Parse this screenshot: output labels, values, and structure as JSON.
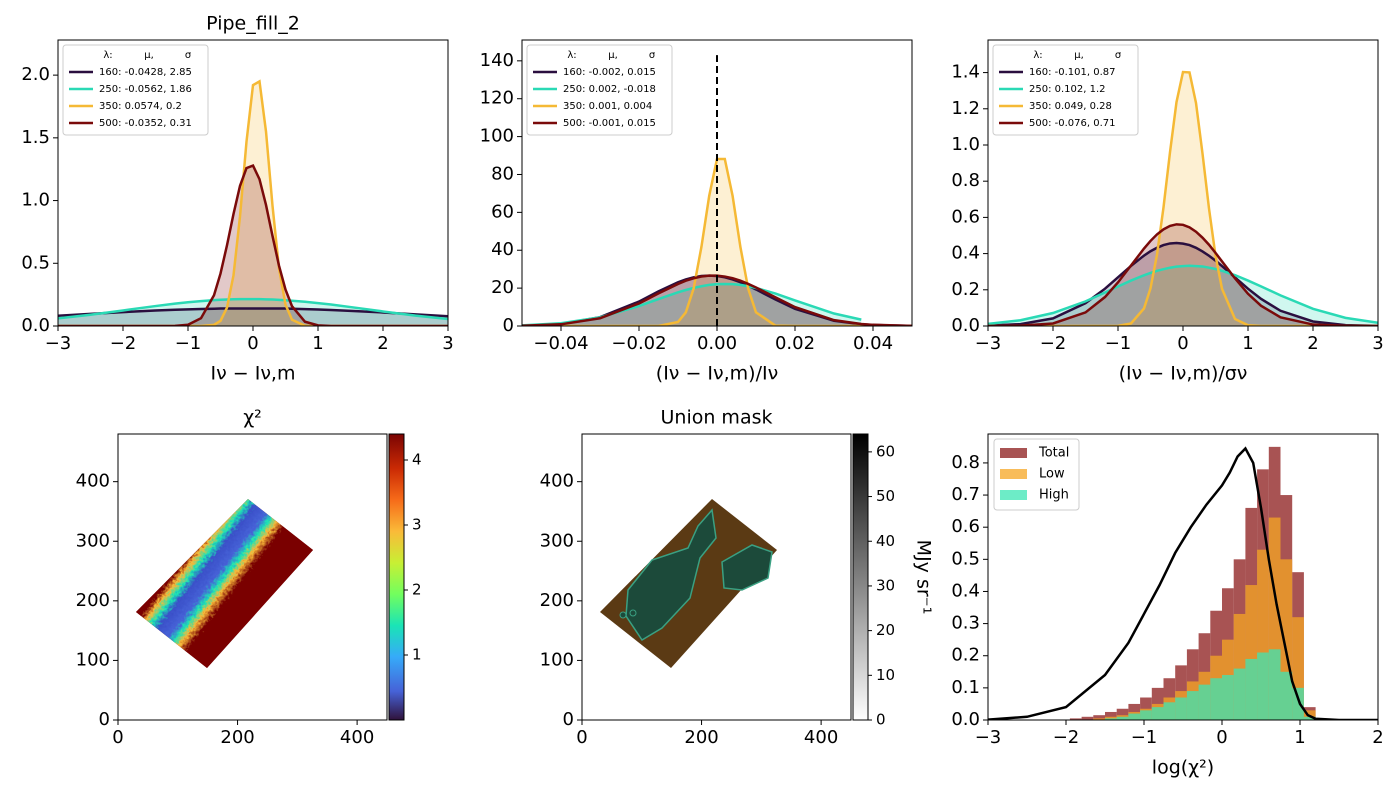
{
  "chart_data": [
    {
      "type": "line",
      "title": "Pipe_fill_2",
      "x_label": "Iν − Iν,m",
      "legend_title": [
        "λ:",
        "μ,",
        "σ"
      ],
      "legend": "upper left",
      "xlim": [
        -3,
        3
      ],
      "ylim": [
        0,
        2.28
      ],
      "xticks": [
        {
          "value": -3,
          "label": "−3"
        },
        {
          "value": -2,
          "label": "−2"
        },
        {
          "value": -1,
          "label": "−1"
        },
        0,
        1,
        2,
        3
      ],
      "yticks": [
        {
          "value": 0,
          "label": "0.0"
        },
        {
          "value": 0.5,
          "label": "0.5"
        },
        {
          "value": 1,
          "label": "1.0"
        },
        {
          "value": 1.5,
          "label": "1.5"
        },
        {
          "value": 2,
          "label": "2.0"
        }
      ],
      "x": [
        -3,
        -2.5,
        -2,
        -1.5,
        -1.2,
        -1,
        -0.8,
        -0.6,
        -0.5,
        -0.4,
        -0.3,
        -0.2,
        -0.1,
        0,
        0.1,
        0.2,
        0.3,
        0.4,
        0.5,
        0.6,
        0.8,
        1,
        1.2,
        1.5,
        2,
        2.5,
        3
      ],
      "series": [
        {
          "name": "160: -0.0428,  2.85",
          "color": "#2a0f3f",
          "values": [
            0.082,
            0.097,
            0.111,
            0.124,
            0.13,
            0.133,
            0.136,
            0.138,
            0.139,
            0.14,
            0.14,
            0.14,
            0.14,
            0.14,
            0.14,
            0.14,
            0.14,
            0.14,
            0.139,
            0.138,
            0.135,
            0.132,
            0.128,
            0.121,
            0.108,
            0.093,
            0.078
          ]
        },
        {
          "name": "250: -0.0562,  1.86",
          "color": "#2ad9b5",
          "values": [
            0.061,
            0.09,
            0.124,
            0.159,
            0.178,
            0.189,
            0.198,
            0.206,
            0.209,
            0.211,
            0.213,
            0.214,
            0.214,
            0.2145,
            0.214,
            0.2125,
            0.211,
            0.208,
            0.205,
            0.201,
            0.193,
            0.182,
            0.171,
            0.151,
            0.116,
            0.083,
            0.056
          ]
        },
        {
          "name": "350: 0.0574,  0.2",
          "color": "#f5b935",
          "values": [
            0,
            0,
            0,
            0,
            0,
            0,
            0,
            0.009,
            0.041,
            0.147,
            0.404,
            0.873,
            1.47,
            1.92,
            1.95,
            1.55,
            0.959,
            0.46,
            0.17,
            0.05,
            0.002,
            0,
            0,
            0,
            0,
            0,
            0
          ]
        },
        {
          "name": "500: -0.0352,  0.31",
          "color": "#7a0a0a",
          "values": [
            0,
            0,
            0,
            0,
            0.001,
            0.01,
            0.062,
            0.245,
            0.418,
            0.644,
            0.893,
            1.117,
            1.259,
            1.279,
            1.17,
            0.965,
            0.718,
            0.481,
            0.29,
            0.158,
            0.034,
            0.005,
            0,
            0,
            0,
            0,
            0
          ]
        }
      ]
    },
    {
      "type": "line",
      "x_label": "(Iν − Iν,m)/Iν",
      "legend_title": [
        "λ:",
        "μ,",
        "σ"
      ],
      "legend": "upper left",
      "xlim": [
        -0.05,
        0.05
      ],
      "ylim": [
        0,
        151
      ],
      "xticks": [
        {
          "value": -0.04,
          "label": "−0.04"
        },
        {
          "value": -0.02,
          "label": "−0.02"
        },
        {
          "value": 0,
          "label": "0.00"
        },
        {
          "value": 0.02,
          "label": "0.02"
        },
        {
          "value": 0.04,
          "label": "0.04"
        }
      ],
      "yticks": [
        0,
        20,
        40,
        60,
        80,
        100,
        120,
        140
      ],
      "reference_line": {
        "x": 0,
        "y": [
          0,
          143
        ]
      },
      "x": [
        -0.05,
        -0.04,
        -0.03,
        -0.02,
        -0.015,
        -0.01,
        -0.008,
        -0.006,
        -0.004,
        -0.002,
        0,
        0.002,
        0.004,
        0.006,
        0.008,
        0.01,
        0.015,
        0.02,
        0.03,
        0.037,
        0.04,
        0.05
      ],
      "series": [
        {
          "name": "160: -0.002,  0.015",
          "color": "#2a0f3f",
          "values": [
            0.16,
            1.07,
            4.66,
            12.9,
            18.3,
            23.1,
            24.6,
            25.7,
            26.4,
            26.6,
            26.4,
            25.7,
            24.6,
            23.1,
            21.3,
            19.3,
            14.0,
            9.07,
            2.73,
            0.9,
            0.53,
            0.07
          ]
        },
        {
          "name": "250: 0.002,  -0.018",
          "color": "#2ad9b5",
          "values": [
            0.34,
            1.46,
            4.57,
            10.5,
            14.2,
            17.8,
            19.0,
            20.1,
            21.0,
            21.7,
            22.1,
            22.2,
            22.1,
            21.7,
            21.0,
            20.1,
            17.1,
            13.5,
            6.6,
            3.35,
            null,
            null
          ]
        },
        {
          "name": "350: 0.001,  0.004",
          "color": "#f5b935",
          "values": [
            0,
            0,
            0,
            0,
            0.03,
            2.1,
            7.2,
            19.7,
            41.7,
            68.7,
            88.2,
            88.2,
            68.7,
            41.7,
            19.7,
            7.2,
            0.2,
            0,
            0,
            0,
            0,
            0
          ]
        },
        {
          "name": "500: -0.001,  0.015",
          "color": "#7a0a0a",
          "values": [
            0.13,
            0.9,
            4.1,
            11.9,
            17.2,
            22.2,
            23.9,
            25.2,
            26.1,
            26.6,
            26.6,
            26.1,
            25.2,
            23.9,
            22.2,
            20.3,
            15.1,
            10.0,
            3.1,
            1.07,
            0.63,
            0.08
          ]
        }
      ]
    },
    {
      "type": "line",
      "x_label": "(Iν − Iν,m)/σν",
      "legend_title": [
        "λ:",
        "μ,",
        "σ"
      ],
      "legend": "upper left",
      "xlim": [
        -3,
        3
      ],
      "ylim": [
        0,
        1.58
      ],
      "xticks": [
        {
          "value": -3,
          "label": "−3"
        },
        {
          "value": -2,
          "label": "−2"
        },
        {
          "value": -1,
          "label": "−1"
        },
        0,
        1,
        2,
        3
      ],
      "yticks": [
        {
          "value": 0,
          "label": "0.0"
        },
        {
          "value": 0.2,
          "label": "0.2"
        },
        {
          "value": 0.4,
          "label": "0.4"
        },
        {
          "value": 0.6,
          "label": "0.6"
        },
        {
          "value": 0.8,
          "label": "0.8"
        },
        {
          "value": 1,
          "label": "1.0"
        },
        {
          "value": 1.2,
          "label": "1.2"
        },
        {
          "value": 1.4,
          "label": "1.4"
        }
      ],
      "x": [
        -3,
        -2.5,
        -2,
        -1.5,
        -1.2,
        -1,
        -0.8,
        -0.6,
        -0.5,
        -0.4,
        -0.3,
        -0.2,
        -0.1,
        0,
        0.1,
        0.2,
        0.3,
        0.4,
        0.5,
        0.6,
        0.8,
        1,
        1.2,
        1.5,
        2,
        2.5,
        3
      ],
      "series": [
        {
          "name": "160: -0.101,  0.87",
          "color": "#2a0f3f",
          "values": [
            0.0018,
            0.0103,
            0.042,
            0.126,
            0.206,
            0.269,
            0.332,
            0.389,
            0.413,
            0.432,
            0.447,
            0.456,
            0.4586,
            0.455,
            0.447,
            0.432,
            0.412,
            0.388,
            0.361,
            0.331,
            0.268,
            0.206,
            0.15,
            0.084,
            0.025,
            0.005,
            0.001
          ]
        },
        {
          "name": "250: 0.102,  1.2",
          "color": "#2ad9b5",
          "values": [
            0.0118,
            0.0317,
            0.0717,
            0.136,
            0.185,
            0.218,
            0.251,
            0.28,
            0.293,
            0.305,
            0.314,
            0.322,
            0.328,
            0.331,
            0.3325,
            0.331,
            0.329,
            0.322,
            0.315,
            0.305,
            0.281,
            0.251,
            0.219,
            0.169,
            0.095,
            0.045,
            0.018
          ]
        },
        {
          "name": "350: 0.049,  0.28",
          "color": "#f5b935",
          "values": [
            0,
            0,
            0,
            0,
            0,
            0.001,
            0.014,
            0.097,
            0.208,
            0.394,
            0.655,
            0.96,
            1.237,
            1.403,
            1.401,
            1.232,
            0.953,
            0.649,
            0.389,
            0.206,
            0.039,
            0.004,
            0,
            0,
            0,
            0,
            0
          ]
        },
        {
          "name": "500: -0.076,  0.71",
          "color": "#7a0a0a",
          "values": [
            0,
            0.002,
            0.014,
            0.075,
            0.16,
            0.241,
            0.334,
            0.428,
            0.47,
            0.506,
            0.534,
            0.553,
            0.5616,
            0.559,
            0.545,
            0.521,
            0.488,
            0.449,
            0.404,
            0.357,
            0.263,
            0.178,
            0.112,
            0.048,
            0.008,
            0.001,
            0
          ]
        }
      ]
    },
    {
      "type": "image",
      "title": "χ²",
      "xlim": [
        0,
        450
      ],
      "ylim": [
        0,
        480
      ],
      "xticks": [
        0,
        200,
        400
      ],
      "yticks": [
        0,
        100,
        200,
        300,
        400
      ],
      "colorbar": {
        "colormap": "turbo",
        "lim": [
          0,
          4.4
        ],
        "ticks": [
          1,
          2,
          3,
          4
        ]
      }
    },
    {
      "type": "image",
      "title": "Union mask",
      "xlim": [
        0,
        450
      ],
      "ylim": [
        0,
        480
      ],
      "xticks": [
        0,
        200,
        400
      ],
      "yticks": [
        0,
        100,
        200,
        300,
        400
      ],
      "colorbar": {
        "colormap": "gray_r",
        "lim": [
          0,
          64
        ],
        "ticks": [
          0,
          10,
          20,
          30,
          40,
          50,
          60
        ],
        "label": "MJy sr⁻¹"
      }
    },
    {
      "type": "histogram",
      "x_label": "log(χ²)",
      "legend": "upper left",
      "xlim": [
        -3,
        2
      ],
      "ylim": [
        0,
        0.89
      ],
      "xticks": [
        {
          "value": -3,
          "label": "−3"
        },
        {
          "value": -2,
          "label": "−2"
        },
        {
          "value": -1,
          "label": "−1"
        },
        0,
        1,
        2
      ],
      "yticks": [
        {
          "value": 0,
          "label": "0.0"
        },
        0.1,
        0.2,
        0.3,
        0.4,
        0.5,
        0.6,
        0.7,
        0.8
      ],
      "bins": [
        -3,
        -2.85,
        -2.7,
        -2.55,
        -2.4,
        -2.25,
        -2.1,
        -1.95,
        -1.8,
        -1.65,
        -1.5,
        -1.35,
        -1.2,
        -1.05,
        -0.9,
        -0.75,
        -0.6,
        -0.45,
        -0.3,
        -0.15,
        0,
        0.15,
        0.3,
        0.45,
        0.6,
        0.75,
        0.9,
        1.05,
        1.2,
        1.35,
        1.5
      ],
      "series": [
        {
          "name": "Total",
          "color": "#8b1a1a",
          "values": [
            0,
            0,
            0,
            0,
            0,
            0,
            0,
            0.005,
            0.01,
            0.015,
            0.025,
            0.035,
            0.05,
            0.07,
            0.1,
            0.13,
            0.17,
            0.22,
            0.27,
            0.34,
            0.41,
            0.5,
            0.66,
            0.78,
            0.85,
            0.7,
            0.46,
            0.04,
            0.005,
            0
          ]
        },
        {
          "name": "Low",
          "color": "#f5a623",
          "values": [
            0,
            0,
            0,
            0,
            0,
            0,
            0,
            0,
            0,
            0.005,
            0.01,
            0.015,
            0.025,
            0.035,
            0.05,
            0.07,
            0.09,
            0.12,
            0.15,
            0.2,
            0.25,
            0.33,
            0.42,
            0.53,
            0.63,
            0.5,
            0.32,
            0.03,
            0.003,
            0
          ]
        },
        {
          "name": "High",
          "color": "#3ce6b4",
          "values": [
            0,
            0,
            0,
            0,
            0,
            0,
            0,
            0,
            0,
            0,
            0.005,
            0.01,
            0.02,
            0.03,
            0.04,
            0.055,
            0.07,
            0.09,
            0.11,
            0.13,
            0.14,
            0.16,
            0.19,
            0.21,
            0.22,
            0.15,
            0.1,
            0.01,
            0,
            0
          ]
        }
      ],
      "curve": {
        "color": "#000000",
        "x": [
          -3,
          -2.5,
          -2,
          -1.5,
          -1.2,
          -1,
          -0.8,
          -0.6,
          -0.4,
          -0.2,
          0,
          0.1,
          0.2,
          0.3,
          0.4,
          0.5,
          0.6,
          0.7,
          0.8,
          0.9,
          1,
          1.1,
          1.2,
          1.5,
          2
        ],
        "values": [
          0.001,
          0.01,
          0.04,
          0.14,
          0.24,
          0.33,
          0.42,
          0.52,
          0.6,
          0.67,
          0.73,
          0.77,
          0.82,
          0.845,
          0.8,
          0.66,
          0.5,
          0.36,
          0.24,
          0.12,
          0.05,
          0.015,
          0.004,
          0,
          0
        ]
      }
    }
  ]
}
